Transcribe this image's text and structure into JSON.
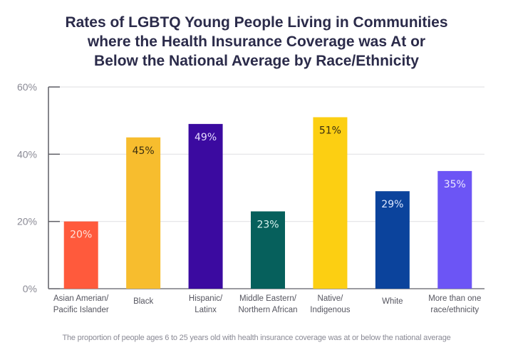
{
  "chart_data": {
    "type": "bar",
    "title": "Rates of LGBTQ Young People Living in Communities where the Health Insurance Coverage was At or Below the National Average by Race/Ethnicity",
    "title_lines": [
      "Rates of LGBTQ Young People Living in Communities",
      "where the Health Insurance Coverage was At or",
      "Below the National Average by Race/Ethnicity"
    ],
    "categories": [
      "Asian Amerian/ Pacific Islander",
      "Black",
      "Hispanic/ Latinx",
      "Middle Eastern/ Northern African",
      "Native/ Indigenous",
      "White",
      "More than one race/ethnicity"
    ],
    "category_lines": [
      [
        "Asian Amerian/",
        "Pacific Islander"
      ],
      [
        "Black"
      ],
      [
        "Hispanic/",
        "Latinx"
      ],
      [
        "Middle Eastern/",
        "Northern African"
      ],
      [
        "Native/",
        "Indigenous"
      ],
      [
        "White"
      ],
      [
        "More than one",
        "race/ethnicity"
      ]
    ],
    "values": [
      20,
      45,
      49,
      23,
      51,
      29,
      35
    ],
    "data_labels": [
      "20%",
      "45%",
      "49%",
      "23%",
      "51%",
      "29%",
      "35%"
    ],
    "colors": [
      "#ff5a3c",
      "#f7bd2e",
      "#3b0aa0",
      "#06605c",
      "#fccf12",
      "#0b439c",
      "#6c55f5"
    ],
    "label_colors": [
      "#ffe3db",
      "#3a2e10",
      "#e6dcff",
      "#d8f3ef",
      "#3a2e10",
      "#dde8ff",
      "#ece8ff"
    ],
    "xlabel": "",
    "ylabel": "",
    "ylim": [
      0,
      60
    ],
    "yticks": [
      0,
      20,
      40,
      60
    ],
    "ytick_labels": [
      "0%",
      "20%",
      "40%",
      "60%"
    ],
    "grid": true,
    "legend": "none",
    "footnote": "The proportion of people ages 6 to 25 years old with health insurance coverage was at or below the national average"
  }
}
